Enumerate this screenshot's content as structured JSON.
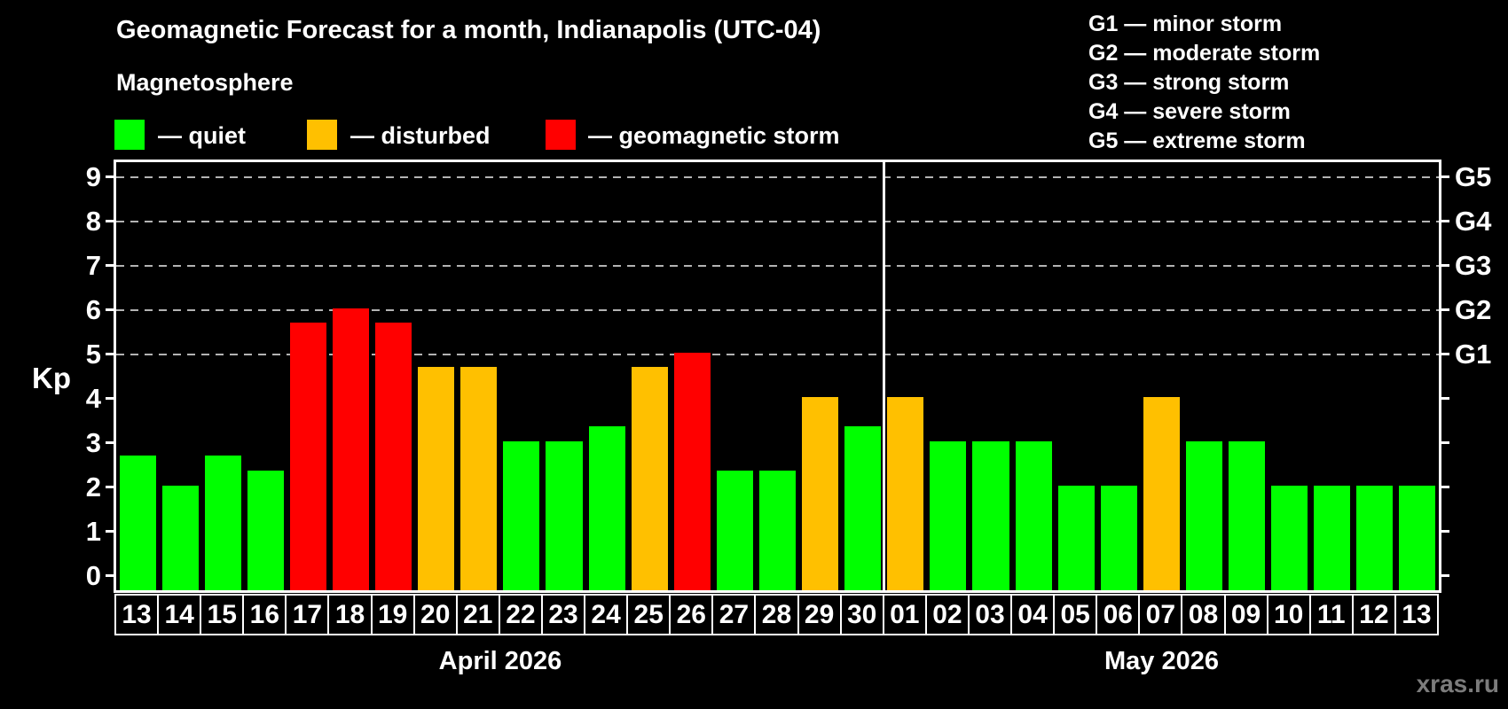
{
  "header": {
    "title": "Geomagnetic Forecast for a month, Indianapolis (UTC-04)",
    "subtitle": "Magnetosphere"
  },
  "legend": {
    "items": [
      {
        "id": "quiet",
        "label": "— quiet",
        "color": "#00ff00"
      },
      {
        "id": "disturbed",
        "label": "— disturbed",
        "color": "#ffc000"
      },
      {
        "id": "storm",
        "label": "— geomagnetic storm",
        "color": "#ff0000"
      }
    ]
  },
  "storm_scale": {
    "items": [
      "G1 — minor storm",
      "G2 — moderate storm",
      "G3 — strong storm",
      "G4 — severe storm",
      "G5 — extreme storm"
    ]
  },
  "watermark": "xras.ru",
  "chart_data": {
    "type": "bar",
    "title": "Geomagnetic Forecast for a month, Indianapolis (UTC-04)",
    "ylabel": "Kp",
    "ylim": [
      0,
      9
    ],
    "axis_kp_min": -0.37,
    "axis_kp_max": 9.33,
    "y_ticks": [
      0,
      1,
      2,
      3,
      4,
      5,
      6,
      7,
      8,
      9
    ],
    "gridlines_at_kp": [
      5,
      6,
      7,
      8,
      9
    ],
    "grid": "dashed-horizontal",
    "legend_position": "top-left",
    "right_axis": [
      {
        "label": "G1",
        "kp": 5
      },
      {
        "label": "G2",
        "kp": 6
      },
      {
        "label": "G3",
        "kp": 7
      },
      {
        "label": "G4",
        "kp": 8
      },
      {
        "label": "G5",
        "kp": 9
      }
    ],
    "status_colors": {
      "quiet": "#00ff00",
      "disturbed": "#ffc000",
      "storm": "#ff0000"
    },
    "months": [
      {
        "label": "April 2026",
        "num_days": 18
      },
      {
        "label": "May 2026",
        "num_days": 13
      }
    ],
    "bars": [
      {
        "month": "April 2026",
        "day": "13",
        "kp": 2.67,
        "status": "quiet"
      },
      {
        "month": "April 2026",
        "day": "14",
        "kp": 2.0,
        "status": "quiet"
      },
      {
        "month": "April 2026",
        "day": "15",
        "kp": 2.67,
        "status": "quiet"
      },
      {
        "month": "April 2026",
        "day": "16",
        "kp": 2.33,
        "status": "quiet"
      },
      {
        "month": "April 2026",
        "day": "17",
        "kp": 5.67,
        "status": "storm"
      },
      {
        "month": "April 2026",
        "day": "18",
        "kp": 6.0,
        "status": "storm"
      },
      {
        "month": "April 2026",
        "day": "19",
        "kp": 5.67,
        "status": "storm"
      },
      {
        "month": "April 2026",
        "day": "20",
        "kp": 4.67,
        "status": "disturbed"
      },
      {
        "month": "April 2026",
        "day": "21",
        "kp": 4.67,
        "status": "disturbed"
      },
      {
        "month": "April 2026",
        "day": "22",
        "kp": 3.0,
        "status": "quiet"
      },
      {
        "month": "April 2026",
        "day": "23",
        "kp": 3.0,
        "status": "quiet"
      },
      {
        "month": "April 2026",
        "day": "24",
        "kp": 3.33,
        "status": "quiet"
      },
      {
        "month": "April 2026",
        "day": "25",
        "kp": 4.67,
        "status": "disturbed"
      },
      {
        "month": "April 2026",
        "day": "26",
        "kp": 5.0,
        "status": "storm"
      },
      {
        "month": "April 2026",
        "day": "27",
        "kp": 2.33,
        "status": "quiet"
      },
      {
        "month": "April 2026",
        "day": "28",
        "kp": 2.33,
        "status": "quiet"
      },
      {
        "month": "April 2026",
        "day": "29",
        "kp": 4.0,
        "status": "disturbed"
      },
      {
        "month": "April 2026",
        "day": "30",
        "kp": 3.33,
        "status": "quiet"
      },
      {
        "month": "May 2026",
        "day": "01",
        "kp": 4.0,
        "status": "disturbed"
      },
      {
        "month": "May 2026",
        "day": "02",
        "kp": 3.0,
        "status": "quiet"
      },
      {
        "month": "May 2026",
        "day": "03",
        "kp": 3.0,
        "status": "quiet"
      },
      {
        "month": "May 2026",
        "day": "04",
        "kp": 3.0,
        "status": "quiet"
      },
      {
        "month": "May 2026",
        "day": "05",
        "kp": 2.0,
        "status": "quiet"
      },
      {
        "month": "May 2026",
        "day": "06",
        "kp": 2.0,
        "status": "quiet"
      },
      {
        "month": "May 2026",
        "day": "07",
        "kp": 4.0,
        "status": "disturbed"
      },
      {
        "month": "May 2026",
        "day": "08",
        "kp": 3.0,
        "status": "quiet"
      },
      {
        "month": "May 2026",
        "day": "09",
        "kp": 3.0,
        "status": "quiet"
      },
      {
        "month": "May 2026",
        "day": "10",
        "kp": 2.0,
        "status": "quiet"
      },
      {
        "month": "May 2026",
        "day": "11",
        "kp": 2.0,
        "status": "quiet"
      },
      {
        "month": "May 2026",
        "day": "12",
        "kp": 2.0,
        "status": "quiet"
      },
      {
        "month": "May 2026",
        "day": "13",
        "kp": 2.0,
        "status": "quiet"
      }
    ]
  }
}
